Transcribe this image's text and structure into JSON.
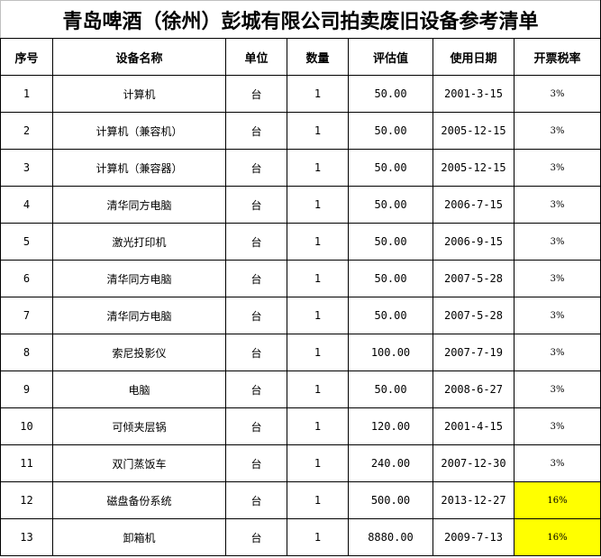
{
  "title": "青岛啤酒（徐州）彭城有限公司拍卖废旧设备参考清单",
  "headers": [
    "序号",
    "设备名称",
    "单位",
    "数量",
    "评估值",
    "使用日期",
    "开票税率"
  ],
  "highlight_color": "#ffff00",
  "rows": [
    {
      "no": "1",
      "name": "计算机",
      "unit": "台",
      "qty": "1",
      "value": "50.00",
      "date": "2001-3-15",
      "rate": "3%",
      "highlight": false
    },
    {
      "no": "2",
      "name": "计算机（兼容机）",
      "unit": "台",
      "qty": "1",
      "value": "50.00",
      "date": "2005-12-15",
      "rate": "3%",
      "highlight": false
    },
    {
      "no": "3",
      "name": "计算机（兼容器）",
      "unit": "台",
      "qty": "1",
      "value": "50.00",
      "date": "2005-12-15",
      "rate": "3%",
      "highlight": false
    },
    {
      "no": "4",
      "name": "清华同方电脑",
      "unit": "台",
      "qty": "1",
      "value": "50.00",
      "date": "2006-7-15",
      "rate": "3%",
      "highlight": false
    },
    {
      "no": "5",
      "name": "激光打印机",
      "unit": "台",
      "qty": "1",
      "value": "50.00",
      "date": "2006-9-15",
      "rate": "3%",
      "highlight": false
    },
    {
      "no": "6",
      "name": "清华同方电脑",
      "unit": "台",
      "qty": "1",
      "value": "50.00",
      "date": "2007-5-28",
      "rate": "3%",
      "highlight": false
    },
    {
      "no": "7",
      "name": "清华同方电脑",
      "unit": "台",
      "qty": "1",
      "value": "50.00",
      "date": "2007-5-28",
      "rate": "3%",
      "highlight": false
    },
    {
      "no": "8",
      "name": "索尼投影仪",
      "unit": "台",
      "qty": "1",
      "value": "100.00",
      "date": "2007-7-19",
      "rate": "3%",
      "highlight": false
    },
    {
      "no": "9",
      "name": "电脑",
      "unit": "台",
      "qty": "1",
      "value": "50.00",
      "date": "2008-6-27",
      "rate": "3%",
      "highlight": false
    },
    {
      "no": "10",
      "name": "可倾夹层锅",
      "unit": "台",
      "qty": "1",
      "value": "120.00",
      "date": "2001-4-15",
      "rate": "3%",
      "highlight": false
    },
    {
      "no": "11",
      "name": "双门蒸饭车",
      "unit": "台",
      "qty": "1",
      "value": "240.00",
      "date": "2007-12-30",
      "rate": "3%",
      "highlight": false
    },
    {
      "no": "12",
      "name": "磁盘备份系统",
      "unit": "台",
      "qty": "1",
      "value": "500.00",
      "date": "2013-12-27",
      "rate": "16%",
      "highlight": true
    },
    {
      "no": "13",
      "name": "卸箱机",
      "unit": "台",
      "qty": "1",
      "value": "8880.00",
      "date": "2009-7-13",
      "rate": "16%",
      "highlight": true
    }
  ]
}
